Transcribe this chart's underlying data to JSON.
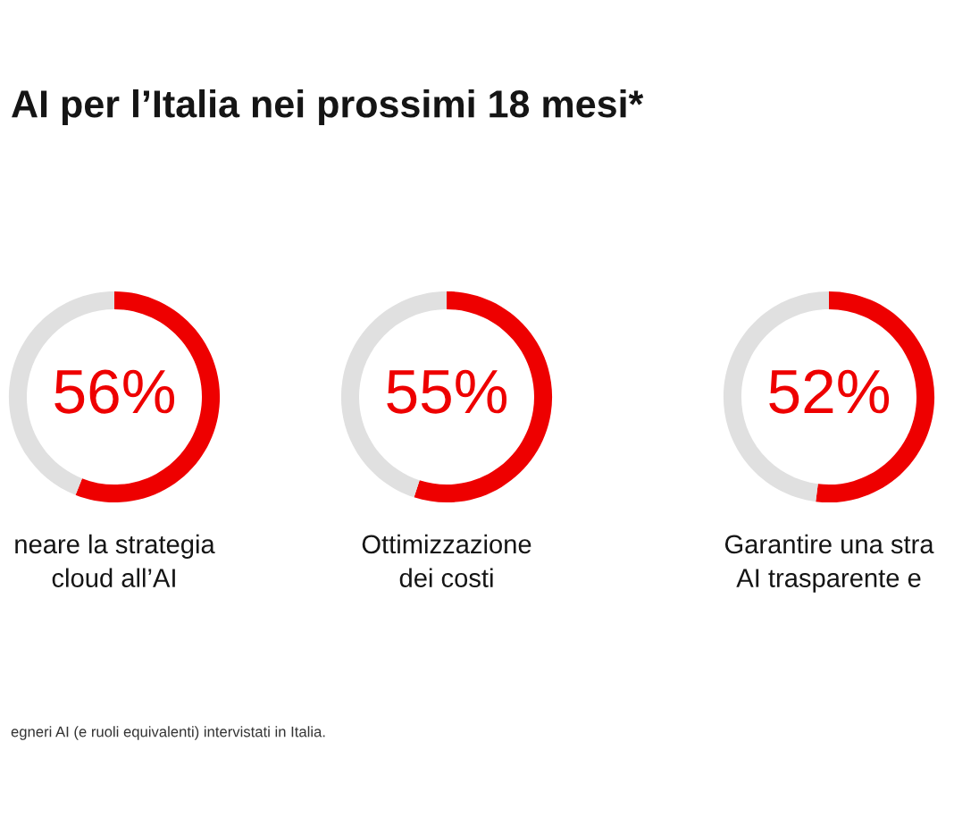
{
  "chart_data": [
    {
      "type": "donut",
      "title": "AI per l’Italia nei prossimi 18 mesi*",
      "categories": [
        "neare la strategia\ncloud all’AI",
        null
      ],
      "values": [
        56,
        44
      ],
      "colors": [
        "#ee0000",
        "#e0e0e0"
      ],
      "value_labels": [
        "56%",
        null
      ],
      "annotations": [
        "egneri AI (e ruoli equivalenti) intervistati in Italia."
      ]
    },
    {
      "type": "donut",
      "categories": [
        "Ottimizzazione\ndei costi",
        null
      ],
      "values": [
        55,
        45
      ],
      "colors": [
        "#ee0000",
        "#e0e0e0"
      ],
      "value_labels": [
        "55%",
        null
      ]
    },
    {
      "type": "donut",
      "categories": [
        "Garantire una stra\nAI trasparente e",
        null
      ],
      "values": [
        52,
        48
      ],
      "colors": [
        "#ee0000",
        "#e0e0e0"
      ],
      "value_labels": [
        "52%",
        null
      ]
    }
  ]
}
